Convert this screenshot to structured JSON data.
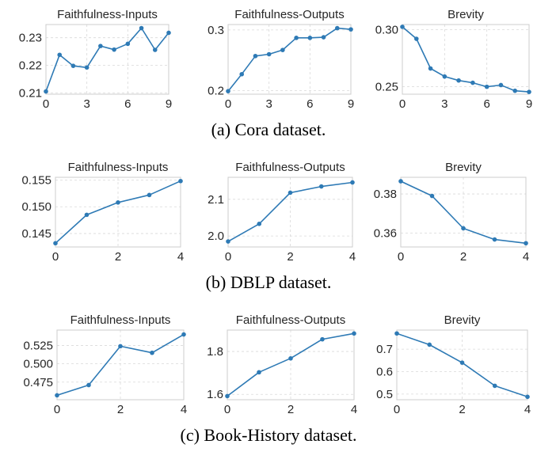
{
  "style": {
    "series_color": "#2e7ab5",
    "grid": true
  },
  "captions": [
    "(a) Cora dataset.",
    "(b) DBLP dataset.",
    "(c) Book-History dataset."
  ],
  "chart_data": [
    {
      "type": "line",
      "dataset": "Cora",
      "title": "Faithfulness-Inputs",
      "x": [
        0,
        1,
        2,
        3,
        4,
        5,
        6,
        7,
        8,
        9
      ],
      "values": [
        0.2105,
        0.2238,
        0.2198,
        0.2192,
        0.227,
        0.2257,
        0.2278,
        0.2335,
        0.2256,
        0.2318
      ],
      "ylim": [
        0.2095,
        0.2348
      ],
      "xticks": [
        0,
        3,
        6,
        9
      ],
      "yticks": [
        0.21,
        0.22,
        0.23
      ],
      "yticklabels": [
        "0.21",
        "0.22",
        "0.23"
      ]
    },
    {
      "type": "line",
      "dataset": "Cora",
      "title": "Faithfulness-Outputs",
      "x": [
        0,
        1,
        2,
        3,
        4,
        5,
        6,
        7,
        8,
        9
      ],
      "values": [
        0.199,
        0.227,
        0.257,
        0.26,
        0.267,
        0.287,
        0.287,
        0.288,
        0.303,
        0.301
      ],
      "ylim": [
        0.194,
        0.309
      ],
      "xticks": [
        0,
        3,
        6,
        9
      ],
      "yticks": [
        0.2,
        0.3
      ],
      "yticklabels": [
        "0.2",
        "0.3"
      ]
    },
    {
      "type": "line",
      "dataset": "Cora",
      "title": "Brevity",
      "x": [
        0,
        1,
        2,
        3,
        4,
        5,
        6,
        7,
        8,
        9
      ],
      "values": [
        0.3025,
        0.292,
        0.266,
        0.259,
        0.2555,
        0.2535,
        0.25,
        0.2515,
        0.2465,
        0.2455
      ],
      "ylim": [
        0.2435,
        0.3045
      ],
      "xticks": [
        0,
        3,
        6,
        9
      ],
      "yticks": [
        0.25,
        0.3
      ],
      "yticklabels": [
        "0.25",
        "0.30"
      ]
    },
    {
      "type": "line",
      "dataset": "DBLP",
      "title": "Faithfulness-Inputs",
      "x": [
        0,
        1,
        2,
        3,
        4
      ],
      "values": [
        0.1432,
        0.1485,
        0.1508,
        0.1522,
        0.1548
      ],
      "ylim": [
        0.1425,
        0.1555
      ],
      "xticks": [
        0,
        2,
        4
      ],
      "yticks": [
        0.145,
        0.15,
        0.155
      ],
      "yticklabels": [
        "0.145",
        "0.150",
        "0.155"
      ]
    },
    {
      "type": "line",
      "dataset": "DBLP",
      "title": "Faithfulness-Outputs",
      "x": [
        0,
        1,
        2,
        3,
        4
      ],
      "values": [
        1.985,
        2.033,
        2.118,
        2.135,
        2.146
      ],
      "ylim": [
        1.97,
        2.16
      ],
      "xticks": [
        0,
        2,
        4
      ],
      "yticks": [
        2.0,
        2.1
      ],
      "yticklabels": [
        "2.0",
        "2.1"
      ]
    },
    {
      "type": "line",
      "dataset": "DBLP",
      "title": "Brevity",
      "x": [
        0,
        1,
        2,
        3,
        4
      ],
      "values": [
        0.3865,
        0.379,
        0.3625,
        0.3568,
        0.3549
      ],
      "ylim": [
        0.353,
        0.3885
      ],
      "xticks": [
        0,
        2,
        4
      ],
      "yticks": [
        0.36,
        0.38
      ],
      "yticklabels": [
        "0.36",
        "0.38"
      ]
    },
    {
      "type": "line",
      "dataset": "Book-History",
      "title": "Faithfulness-Inputs",
      "x": [
        0,
        1,
        2,
        3,
        4
      ],
      "values": [
        0.457,
        0.471,
        0.524,
        0.515,
        0.54
      ],
      "ylim": [
        0.451,
        0.546
      ],
      "xticks": [
        0,
        2,
        4
      ],
      "yticks": [
        0.475,
        0.5,
        0.525
      ],
      "yticklabels": [
        "0.475",
        "0.500",
        "0.525"
      ]
    },
    {
      "type": "line",
      "dataset": "Book-History",
      "title": "Faithfulness-Outputs",
      "x": [
        0,
        1,
        2,
        3,
        4
      ],
      "values": [
        1.592,
        1.703,
        1.768,
        1.857,
        1.884
      ],
      "ylim": [
        1.575,
        1.9
      ],
      "xticks": [
        0,
        2,
        4
      ],
      "yticks": [
        1.6,
        1.8
      ],
      "yticklabels": [
        "1.6",
        "1.8"
      ]
    },
    {
      "type": "line",
      "dataset": "Book-History",
      "title": "Brevity",
      "x": [
        0,
        1,
        2,
        3,
        4
      ],
      "values": [
        0.77,
        0.72,
        0.64,
        0.537,
        0.488
      ],
      "ylim": [
        0.475,
        0.785
      ],
      "xticks": [
        0,
        2,
        4
      ],
      "yticks": [
        0.5,
        0.6,
        0.7
      ],
      "yticklabels": [
        "0.5",
        "0.6",
        "0.7"
      ]
    }
  ]
}
